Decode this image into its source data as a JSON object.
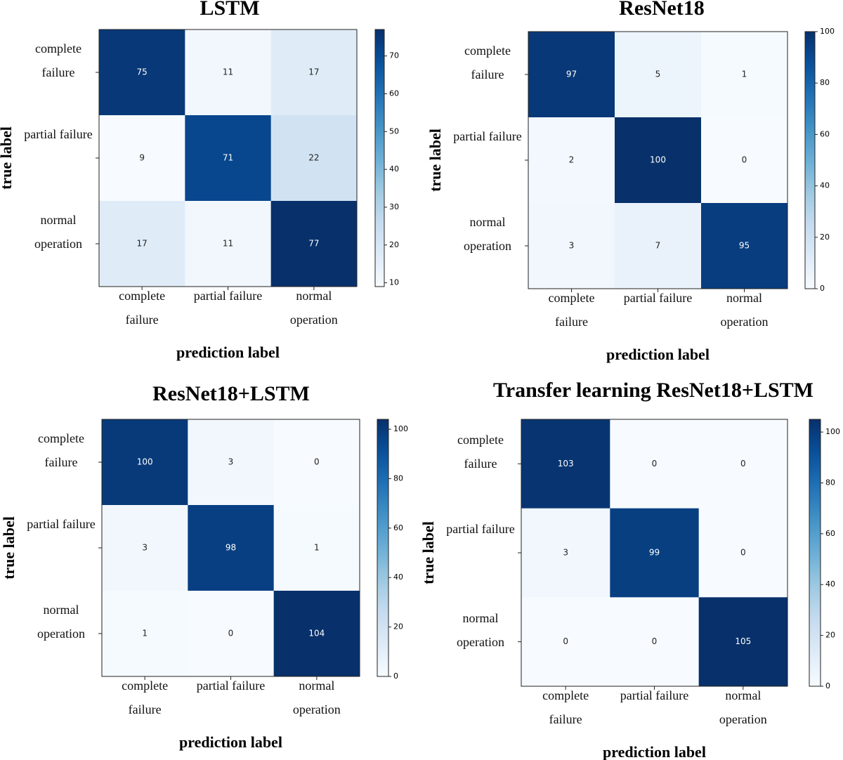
{
  "chart_data": [
    {
      "type": "heatmap",
      "title": "LSTM",
      "x_label": "prediction label",
      "y_label": "true label",
      "x_categories": [
        "complete failure",
        "partial failure",
        "normal operation"
      ],
      "y_categories": [
        "complete failure",
        "partial failure",
        "normal operation"
      ],
      "values": [
        [
          75,
          11,
          17
        ],
        [
          9,
          71,
          22
        ],
        [
          17,
          11,
          77
        ]
      ],
      "clim": [
        9,
        77
      ],
      "colorbar_ticks": [
        10,
        20,
        30,
        40,
        50,
        60,
        70
      ],
      "colormap": "Blues"
    },
    {
      "type": "heatmap",
      "title": "ResNet18",
      "x_label": "prediction label",
      "y_label": "true label",
      "x_categories": [
        "complete failure",
        "partial failure",
        "normal operation"
      ],
      "y_categories": [
        "complete failure",
        "partial failure",
        "normal operation"
      ],
      "values": [
        [
          97,
          5,
          1
        ],
        [
          2,
          100,
          0
        ],
        [
          3,
          7,
          95
        ]
      ],
      "clim": [
        0,
        100
      ],
      "colorbar_ticks": [
        0,
        20,
        40,
        60,
        80,
        100
      ],
      "colormap": "Blues"
    },
    {
      "type": "heatmap",
      "title": "ResNet18+LSTM",
      "x_label": "prediction label",
      "y_label": "true label",
      "x_categories": [
        "complete failure",
        "partial failure",
        "normal operation"
      ],
      "y_categories": [
        "complete failure",
        "partial failure",
        "normal operation"
      ],
      "values": [
        [
          100,
          3,
          0
        ],
        [
          3,
          98,
          1
        ],
        [
          1,
          0,
          104
        ]
      ],
      "clim": [
        0,
        104
      ],
      "colorbar_ticks": [
        0,
        20,
        40,
        60,
        80,
        100
      ],
      "colormap": "Blues"
    },
    {
      "type": "heatmap",
      "title": "Transfer learning ResNet18+LSTM",
      "x_label": "prediction label",
      "y_label": "true label",
      "x_categories": [
        "complete failure",
        "partial failure",
        "normal operation"
      ],
      "y_categories": [
        "complete failure",
        "partial failure",
        "normal operation"
      ],
      "values": [
        [
          103,
          0,
          0
        ],
        [
          3,
          99,
          0
        ],
        [
          0,
          0,
          105
        ]
      ],
      "clim": [
        0,
        105
      ],
      "colorbar_ticks": [
        0,
        20,
        40,
        60,
        80,
        100
      ],
      "colormap": "Blues"
    }
  ]
}
